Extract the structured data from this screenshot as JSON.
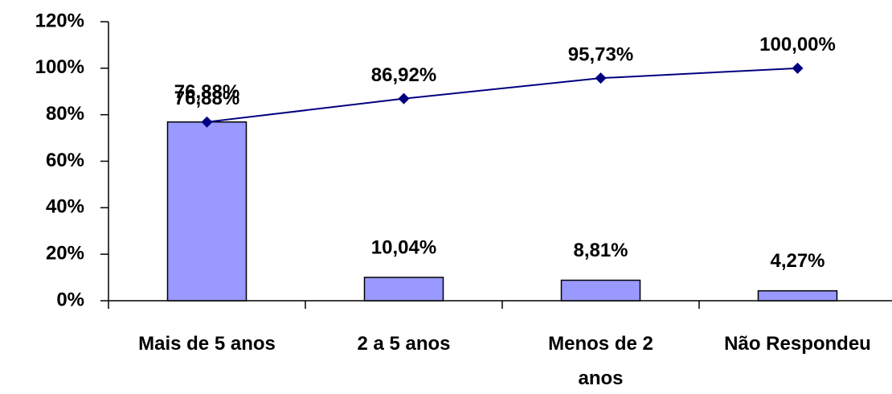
{
  "chart_data": {
    "type": "pareto",
    "categories": [
      "Mais de 5 anos",
      "2 a 5 anos",
      "Menos de 2 anos",
      "Não Respondeu"
    ],
    "series": [
      {
        "type": "bar",
        "color": "#9999ff",
        "values": [
          76.88,
          10.04,
          8.81,
          4.27
        ],
        "value_labels": [
          "76,88%",
          "10,04%",
          "8,81%",
          "4,27%"
        ]
      },
      {
        "type": "line",
        "color": "#000080",
        "values": [
          76.88,
          86.92,
          95.73,
          100.0
        ],
        "value_labels": [
          "76,88%",
          "86,92%",
          "95,73%",
          "100,00%"
        ]
      }
    ],
    "ylim": [
      0,
      120
    ],
    "yticks": [
      {
        "value": 0,
        "label": "0%"
      },
      {
        "value": 20,
        "label": "20%"
      },
      {
        "value": 40,
        "label": "40%"
      },
      {
        "value": 60,
        "label": "60%"
      },
      {
        "value": 80,
        "label": "80%"
      },
      {
        "value": 100,
        "label": "100%"
      },
      {
        "value": 120,
        "label": "120%"
      }
    ],
    "grid": false
  }
}
